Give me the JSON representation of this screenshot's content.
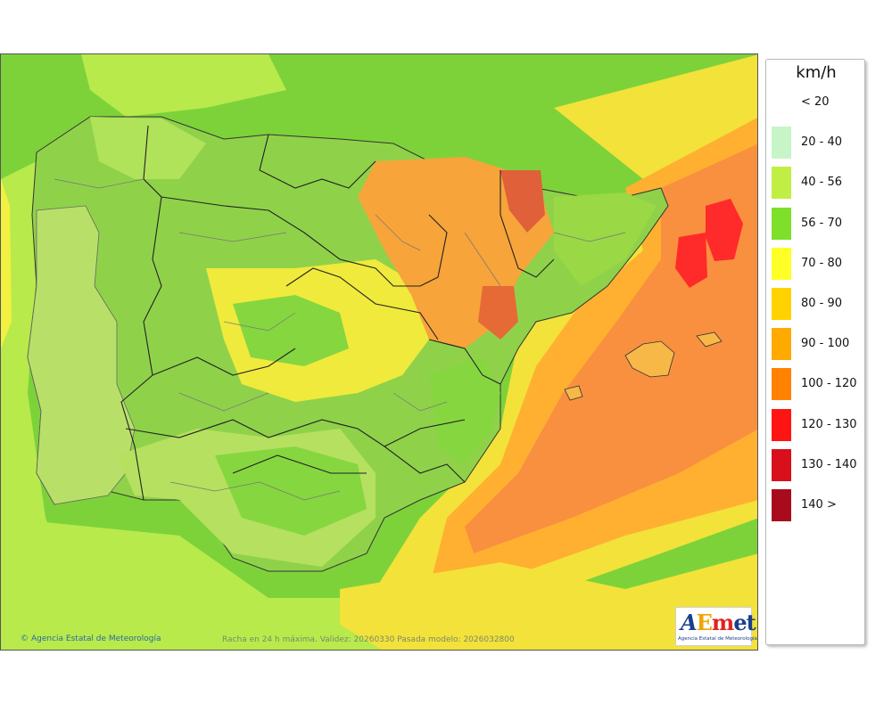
{
  "map": {
    "credit_text": "Agencia Estatal de Meteorología",
    "caption": "Racha en 24 h máxima. Validez: 20260330 Pasada modelo: 2026032800"
  },
  "logo": {
    "word_a": "A",
    "word_e": "E",
    "word_m": "m",
    "word_et": "et",
    "subtitle": "Agencia Estatal de Meteorología"
  },
  "legend": {
    "unit": "km/h",
    "classes": [
      {
        "label": "< 20",
        "color": "#ffffff"
      },
      {
        "label": "20 - 40",
        "color": "#c8f5c8"
      },
      {
        "label": "40 - 56",
        "color": "#c0ee44"
      },
      {
        "label": "56 - 70",
        "color": "#7ee02a"
      },
      {
        "label": "70 - 80",
        "color": "#ffff28"
      },
      {
        "label": "80 - 90",
        "color": "#ffd200"
      },
      {
        "label": "90 - 100",
        "color": "#ffaa00"
      },
      {
        "label": "100 - 120",
        "color": "#ff8200"
      },
      {
        "label": "120 - 130",
        "color": "#ff1414"
      },
      {
        "label": "130 - 140",
        "color": "#d8101c"
      },
      {
        "label": "140 >",
        "color": "#a80c1c"
      }
    ]
  }
}
